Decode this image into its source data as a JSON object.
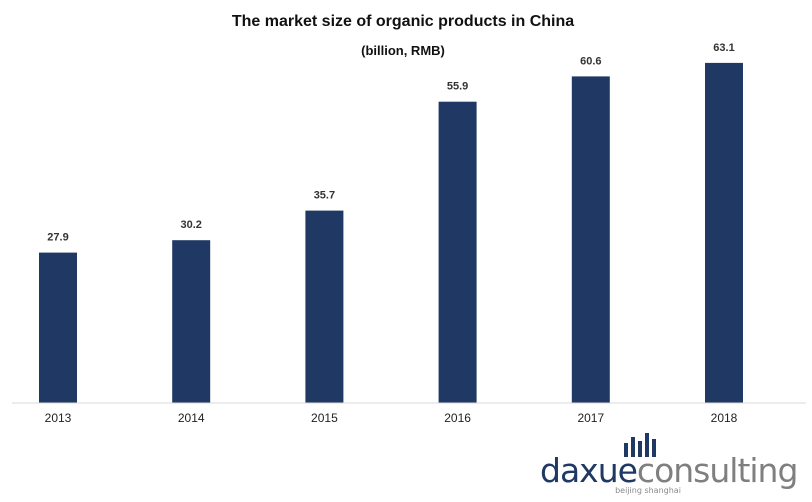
{
  "chart_data": {
    "type": "bar",
    "title": "The market size of organic products in China",
    "subtitle": "(billion, RMB)",
    "categories": [
      "2013",
      "2014",
      "2015",
      "2016",
      "2017",
      "2018"
    ],
    "values": [
      27.9,
      30.2,
      35.7,
      55.9,
      60.6,
      63.1
    ],
    "value_labels": [
      "27.9",
      "30.2",
      "35.7",
      "55.9",
      "60.6",
      "63.1"
    ],
    "xlabel": "",
    "ylabel": "",
    "ylim": [
      0,
      70
    ],
    "grid": false,
    "legend": "none",
    "bar_color": "#1f3864"
  },
  "logo": {
    "name_part1": "daxue",
    "name_part2": "consulting",
    "tagline": "beijing shanghai",
    "color_part1": "#1f3864",
    "color_part2": "#7f7f7f"
  }
}
